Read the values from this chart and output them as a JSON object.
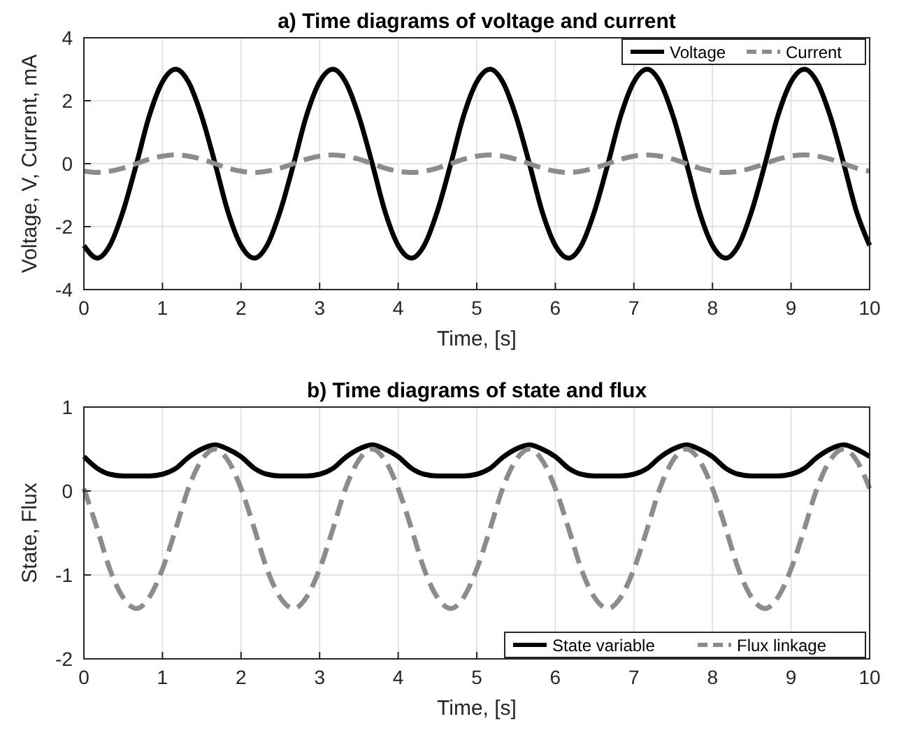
{
  "chart_data": [
    {
      "type": "line",
      "title": "a) Time diagrams of voltage and current",
      "xlabel": "Time, [s]",
      "ylabel": "Voltage, V, Current, mA",
      "x": [
        0,
        0.17,
        0.33,
        0.5,
        0.67,
        0.83,
        1,
        1.17,
        1.33,
        1.5,
        1.67,
        1.83,
        2,
        2.17,
        2.33,
        2.5,
        2.67,
        2.83,
        3,
        3.17,
        3.33,
        3.5,
        3.67,
        3.83,
        4,
        4.17,
        4.33,
        4.5,
        4.67,
        4.83,
        5,
        5.17,
        5.33,
        5.5,
        5.67,
        5.83,
        6,
        6.17,
        6.33,
        6.5,
        6.67,
        6.83,
        7,
        7.17,
        7.33,
        7.5,
        7.67,
        7.83,
        8,
        8.17,
        8.33,
        8.5,
        8.67,
        8.83,
        9,
        9.17,
        9.33,
        9.5,
        9.67,
        9.83,
        10
      ],
      "series": [
        {
          "name": "Voltage",
          "color": "#000000",
          "line_style": "solid",
          "values": [
            -2.6,
            -3,
            -2.6,
            -1.5,
            0,
            1.5,
            2.6,
            3,
            2.6,
            1.5,
            0,
            -1.5,
            -2.6,
            -3,
            -2.6,
            -1.5,
            0,
            1.5,
            2.6,
            3,
            2.6,
            1.5,
            0,
            -1.5,
            -2.6,
            -3,
            -2.6,
            -1.5,
            0,
            1.5,
            2.6,
            3,
            2.6,
            1.5,
            0,
            -1.5,
            -2.6,
            -3,
            -2.6,
            -1.5,
            0,
            1.5,
            2.6,
            3,
            2.6,
            1.5,
            0,
            -1.5,
            -2.6,
            -3,
            -2.6,
            -1.5,
            0,
            1.5,
            2.6,
            3,
            2.6,
            1.5,
            0,
            -1.5,
            -2.6
          ]
        },
        {
          "name": "Current",
          "color": "#8c8c8c",
          "line_style": "dashed",
          "values": [
            -0.24,
            -0.28,
            -0.24,
            -0.14,
            0,
            0.14,
            0.24,
            0.28,
            0.24,
            0.14,
            0,
            -0.14,
            -0.24,
            -0.28,
            -0.24,
            -0.14,
            0,
            0.14,
            0.24,
            0.28,
            0.24,
            0.14,
            0,
            -0.14,
            -0.24,
            -0.28,
            -0.24,
            -0.14,
            0,
            0.14,
            0.24,
            0.28,
            0.24,
            0.14,
            0,
            -0.14,
            -0.24,
            -0.28,
            -0.24,
            -0.14,
            0,
            0.14,
            0.24,
            0.28,
            0.24,
            0.14,
            0,
            -0.14,
            -0.24,
            -0.28,
            -0.24,
            -0.14,
            0,
            0.14,
            0.24,
            0.28,
            0.24,
            0.14,
            0,
            -0.14,
            -0.24
          ]
        }
      ],
      "xlim": [
        0,
        10
      ],
      "xticks": [
        0,
        1,
        2,
        3,
        4,
        5,
        6,
        7,
        8,
        9,
        10
      ],
      "ylim": [
        -4,
        4
      ],
      "yticks": [
        -4,
        -2,
        0,
        2,
        4
      ],
      "grid": true,
      "legend": "top right"
    },
    {
      "type": "line",
      "title": "b) Time diagrams of state and flux",
      "xlabel": "Time, [s]",
      "ylabel": "State, Flux",
      "x": [
        0,
        0.17,
        0.33,
        0.5,
        0.67,
        0.83,
        1,
        1.17,
        1.33,
        1.5,
        1.67,
        1.83,
        2,
        2.17,
        2.33,
        2.5,
        2.67,
        2.83,
        3,
        3.17,
        3.33,
        3.5,
        3.67,
        3.83,
        4,
        4.17,
        4.33,
        4.5,
        4.67,
        4.83,
        5,
        5.17,
        5.33,
        5.5,
        5.67,
        5.83,
        6,
        6.17,
        6.33,
        6.5,
        6.67,
        6.83,
        7,
        7.17,
        7.33,
        7.5,
        7.67,
        7.83,
        8,
        8.17,
        8.33,
        8.5,
        8.67,
        8.83,
        9,
        9.17,
        9.33,
        9.5,
        9.67,
        9.83,
        10
      ],
      "series": [
        {
          "name": "State variable",
          "color": "#000000",
          "line_style": "solid",
          "values": [
            0.41,
            0.27,
            0.2,
            0.18,
            0.18,
            0.18,
            0.2,
            0.27,
            0.4,
            0.5,
            0.55,
            0.5,
            0.41,
            0.27,
            0.2,
            0.18,
            0.18,
            0.18,
            0.2,
            0.27,
            0.4,
            0.5,
            0.55,
            0.5,
            0.41,
            0.27,
            0.2,
            0.18,
            0.18,
            0.18,
            0.2,
            0.27,
            0.4,
            0.5,
            0.55,
            0.5,
            0.41,
            0.27,
            0.2,
            0.18,
            0.18,
            0.18,
            0.2,
            0.27,
            0.4,
            0.5,
            0.55,
            0.5,
            0.41,
            0.27,
            0.2,
            0.18,
            0.18,
            0.18,
            0.2,
            0.27,
            0.4,
            0.5,
            0.55,
            0.5,
            0.41
          ]
        },
        {
          "name": "Flux linkage",
          "color": "#8c8c8c",
          "line_style": "dashed",
          "values": [
            0.03,
            -0.45,
            -0.93,
            -1.27,
            -1.4,
            -1.27,
            -0.93,
            -0.45,
            0.03,
            0.37,
            0.5,
            0.37,
            0.03,
            -0.45,
            -0.93,
            -1.27,
            -1.4,
            -1.27,
            -0.93,
            -0.45,
            0.03,
            0.37,
            0.5,
            0.37,
            0.03,
            -0.45,
            -0.93,
            -1.27,
            -1.4,
            -1.27,
            -0.93,
            -0.45,
            0.03,
            0.37,
            0.5,
            0.37,
            0.03,
            -0.45,
            -0.93,
            -1.27,
            -1.4,
            -1.27,
            -0.93,
            -0.45,
            0.03,
            0.37,
            0.5,
            0.37,
            0.03,
            -0.45,
            -0.93,
            -1.27,
            -1.4,
            -1.27,
            -0.93,
            -0.45,
            0.03,
            0.37,
            0.5,
            0.37,
            0.03
          ]
        }
      ],
      "xlim": [
        0,
        10
      ],
      "xticks": [
        0,
        1,
        2,
        3,
        4,
        5,
        6,
        7,
        8,
        9,
        10
      ],
      "ylim": [
        -2,
        1
      ],
      "yticks": [
        -2,
        -1,
        0,
        1
      ],
      "grid": true,
      "legend": "bottom right"
    }
  ]
}
